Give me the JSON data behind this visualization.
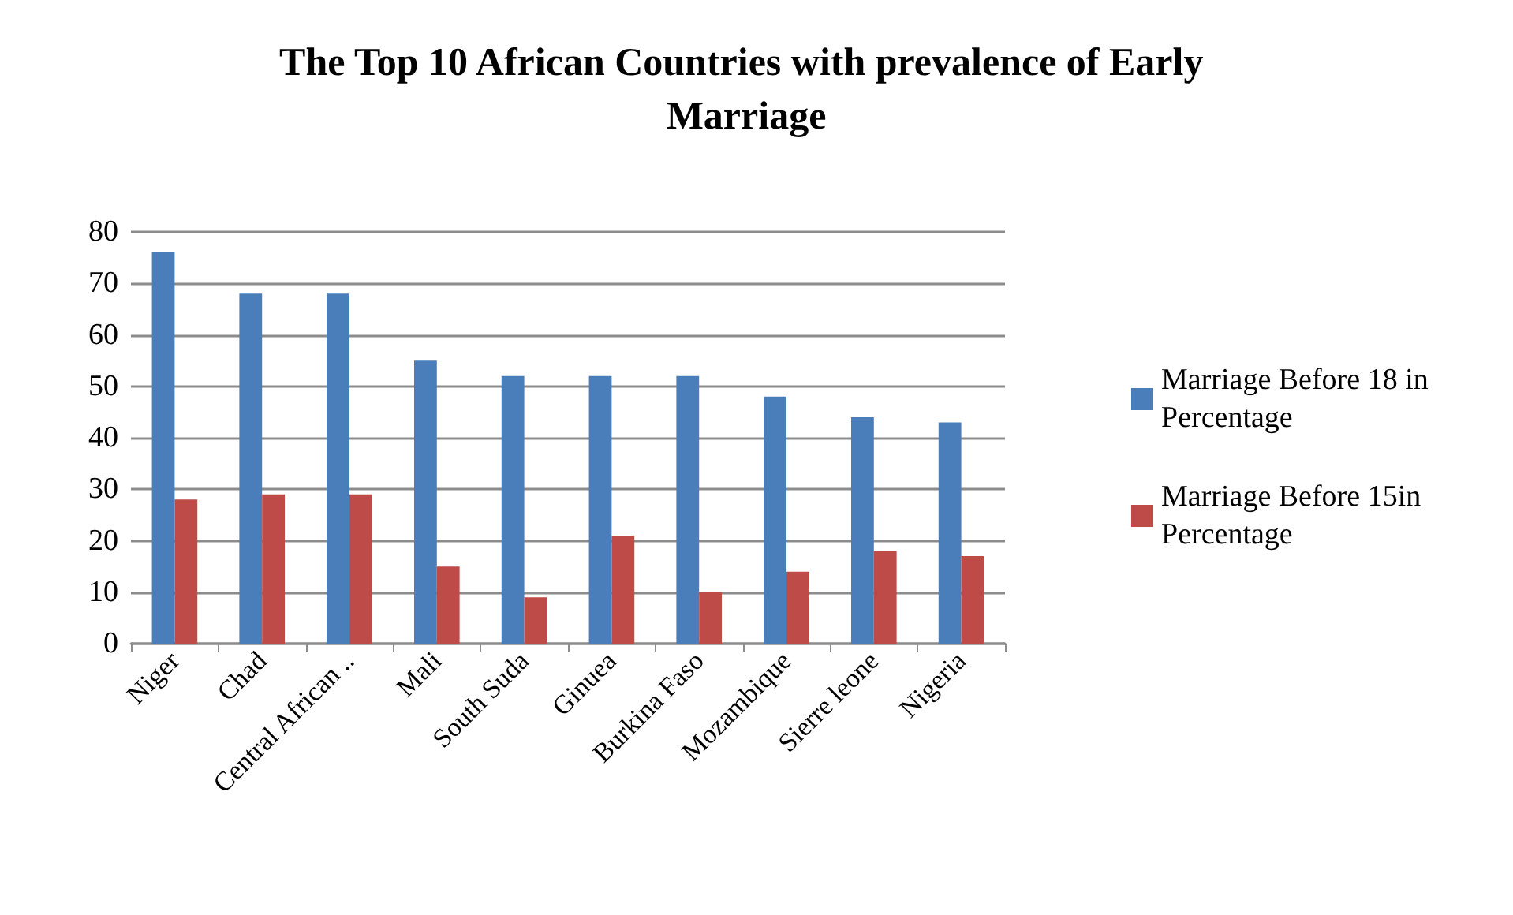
{
  "chart_data": {
    "type": "bar",
    "title": "The Top 10 African Countries with prevalence of Early Marriage",
    "categories": [
      "Niger",
      "Chad",
      "Central African ..",
      "Mali",
      "South Suda",
      "Ginuea",
      "Burkina Faso",
      "Mozambique",
      "Sierre leone",
      "Nigeria"
    ],
    "series": [
      {
        "name": "Marriage Before 18 in Percentage",
        "color": "#4a7ebb",
        "values": [
          76,
          68,
          68,
          55,
          52,
          52,
          52,
          48,
          44,
          43
        ]
      },
      {
        "name": "Marriage Before 15in Percentage",
        "color": "#be4b48",
        "values": [
          28,
          29,
          29,
          15,
          9,
          21,
          10,
          14,
          18,
          17
        ]
      }
    ],
    "ylim": [
      0,
      80
    ],
    "yticks": [
      0,
      10,
      20,
      30,
      40,
      50,
      60,
      70,
      80
    ],
    "grid": "y",
    "legend": "right"
  }
}
